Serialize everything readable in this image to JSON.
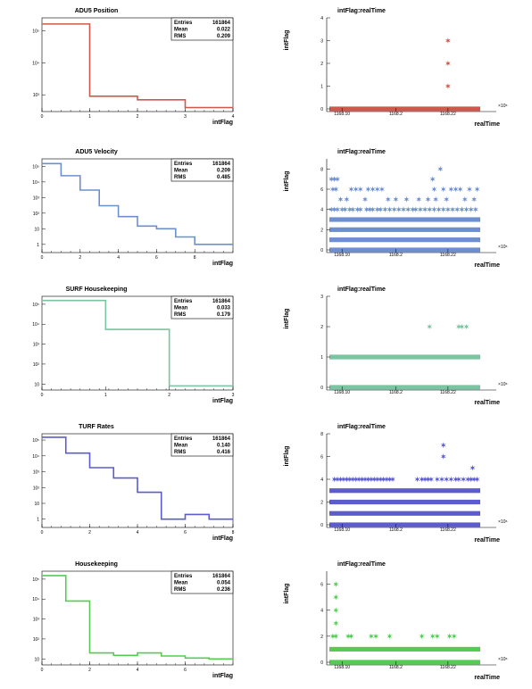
{
  "colors": {
    "frame": "#000000",
    "grey_bin": "#bcbcbc"
  },
  "chart_data": [
    {
      "type": "histogram",
      "title": "ADU5 Position",
      "xlabel": "intFlag",
      "ylabel": "",
      "xlim": [
        0,
        4
      ],
      "ylog": true,
      "yticks": [
        {
          "v": 100000,
          "label": "10⁵"
        },
        {
          "v": 10000,
          "label": "10⁴"
        },
        {
          "v": 1000,
          "label": "10³"
        }
      ],
      "ylim": [
        300,
        250000
      ],
      "xticks": [
        "0",
        "1",
        "2",
        "3",
        "4"
      ],
      "bin_edges": [
        0,
        1,
        2,
        3,
        4
      ],
      "values": [
        161000,
        900,
        700,
        400
      ],
      "color": "#d0574b",
      "stats": {
        "Entries": "161864",
        "Mean": "0.022",
        "RMS": "0.209"
      }
    },
    {
      "type": "scatter",
      "title": "intFlag:realTime",
      "xlabel": "realTime",
      "ylabel": "intFlag",
      "xlim": [
        0,
        100
      ],
      "ylim": [
        0,
        4
      ],
      "yticks": [
        0,
        1,
        2,
        3,
        4
      ],
      "xticks": [
        {
          "v": 10,
          "label": "1168.10"
        },
        {
          "v": 45,
          "label": "1168.2"
        },
        {
          "v": 79,
          "label": "1168.22"
        }
      ],
      "xexp": "×10⁶",
      "color": "#d0574b",
      "bands": [
        0
      ],
      "points": [
        [
          79,
          1
        ],
        [
          79,
          2
        ],
        [
          79,
          3
        ]
      ]
    },
    {
      "type": "histogram",
      "title": "ADU5 Velocity",
      "xlabel": "intFlag",
      "ylabel": "",
      "xlim": [
        0,
        10
      ],
      "ylog": true,
      "yticks": [
        {
          "v": 100000,
          "label": "10⁵"
        },
        {
          "v": 10000,
          "label": "10⁴"
        },
        {
          "v": 1000,
          "label": "10³"
        },
        {
          "v": 100,
          "label": "10²"
        },
        {
          "v": 10,
          "label": "10"
        },
        {
          "v": 1,
          "label": "1"
        }
      ],
      "ylim": [
        0.3,
        300000
      ],
      "xticks": [
        "0",
        "2",
        "4",
        "6",
        "8"
      ],
      "bin_edges": [
        0,
        1,
        2,
        3,
        4,
        5,
        6,
        7,
        8,
        9,
        10
      ],
      "values": [
        150000,
        25000,
        3000,
        300,
        60,
        15,
        10,
        3,
        1,
        1
      ],
      "color": "#6d8fd1",
      "stats": {
        "Entries": "161864",
        "Mean": "0.209",
        "RMS": "0.485"
      }
    },
    {
      "type": "scatter",
      "title": "intFlag:realTime",
      "xlabel": "realTime",
      "ylabel": "intFlag",
      "xlim": [
        0,
        100
      ],
      "ylim": [
        0,
        9
      ],
      "yticks": [
        0,
        2,
        4,
        6,
        8
      ],
      "xticks": [
        {
          "v": 10,
          "label": "1168.10"
        },
        {
          "v": 45,
          "label": "1168.2"
        },
        {
          "v": 79,
          "label": "1168.22"
        }
      ],
      "xexp": "×10⁶",
      "color": "#6d8fd1",
      "bands": [
        0,
        1,
        2,
        3
      ],
      "points": [
        [
          3,
          7
        ],
        [
          5,
          7
        ],
        [
          7,
          7
        ],
        [
          4,
          6
        ],
        [
          6,
          6
        ],
        [
          9,
          5
        ],
        [
          13,
          5
        ],
        [
          16,
          6
        ],
        [
          19,
          6
        ],
        [
          22,
          6
        ],
        [
          25,
          5
        ],
        [
          27,
          6
        ],
        [
          30,
          6
        ],
        [
          33,
          6
        ],
        [
          36,
          6
        ],
        [
          40,
          5
        ],
        [
          45,
          5
        ],
        [
          52,
          5
        ],
        [
          60,
          5
        ],
        [
          66,
          5
        ],
        [
          69,
          7
        ],
        [
          70,
          6
        ],
        [
          71,
          5
        ],
        [
          74,
          8
        ],
        [
          76,
          6
        ],
        [
          78,
          5
        ],
        [
          81,
          6
        ],
        [
          84,
          6
        ],
        [
          87,
          6
        ],
        [
          90,
          5
        ],
        [
          93,
          6
        ],
        [
          96,
          5
        ],
        [
          98,
          6
        ],
        [
          3,
          4
        ],
        [
          5,
          4
        ],
        [
          7,
          4
        ],
        [
          10,
          4
        ],
        [
          12,
          4
        ],
        [
          15,
          4
        ],
        [
          17,
          4
        ],
        [
          20,
          4
        ],
        [
          22,
          4
        ],
        [
          26,
          4
        ],
        [
          28,
          4
        ],
        [
          30,
          4
        ],
        [
          33,
          4
        ],
        [
          35,
          4
        ],
        [
          38,
          4
        ],
        [
          41,
          4
        ],
        [
          44,
          4
        ],
        [
          47,
          4
        ],
        [
          50,
          4
        ],
        [
          53,
          4
        ],
        [
          56,
          4
        ],
        [
          58,
          4
        ],
        [
          61,
          4
        ],
        [
          64,
          4
        ],
        [
          67,
          4
        ],
        [
          70,
          4
        ],
        [
          73,
          4
        ],
        [
          76,
          4
        ],
        [
          79,
          4
        ],
        [
          82,
          4
        ],
        [
          85,
          4
        ],
        [
          88,
          4
        ],
        [
          91,
          4
        ],
        [
          94,
          4
        ],
        [
          97,
          4
        ]
      ]
    },
    {
      "type": "histogram",
      "title": "SURF Housekeeping",
      "xlabel": "intFlag",
      "ylabel": "",
      "xlim": [
        0,
        3
      ],
      "ylog": true,
      "yticks": [
        {
          "v": 100000,
          "label": "10⁵"
        },
        {
          "v": 10000,
          "label": "10⁴"
        },
        {
          "v": 1000,
          "label": "10³"
        },
        {
          "v": 100,
          "label": "10²"
        },
        {
          "v": 10,
          "label": "10"
        }
      ],
      "ylim": [
        5,
        250000
      ],
      "xticks": [
        "0",
        "1",
        "2",
        "3"
      ],
      "bin_edges": [
        0,
        1,
        2,
        3
      ],
      "values": [
        155000,
        5500,
        8
      ],
      "color": "#7ac4a1",
      "stats": {
        "Entries": "161864",
        "Mean": "0.033",
        "RMS": "0.179"
      }
    },
    {
      "type": "scatter",
      "title": "intFlag:realTime",
      "xlabel": "realTime",
      "ylabel": "intFlag",
      "xlim": [
        0,
        100
      ],
      "ylim": [
        0,
        3
      ],
      "yticks": [
        0,
        1,
        2,
        3
      ],
      "xticks": [
        {
          "v": 10,
          "label": "1168.10"
        },
        {
          "v": 45,
          "label": "1168.2"
        },
        {
          "v": 79,
          "label": "1168.22"
        }
      ],
      "xexp": "×10⁶",
      "color": "#7ac4a1",
      "bands": [
        0,
        1
      ],
      "points": [
        [
          67,
          2
        ],
        [
          86,
          2
        ],
        [
          88,
          2
        ],
        [
          91,
          2
        ]
      ]
    },
    {
      "type": "histogram",
      "title": "TURF Rates",
      "xlabel": "intFlag",
      "ylabel": "",
      "xlim": [
        0,
        8
      ],
      "ylog": true,
      "yticks": [
        {
          "v": 100000,
          "label": "10⁵"
        },
        {
          "v": 10000,
          "label": "10⁴"
        },
        {
          "v": 1000,
          "label": "10³"
        },
        {
          "v": 100,
          "label": "10²"
        },
        {
          "v": 10,
          "label": "10"
        },
        {
          "v": 1,
          "label": "1"
        }
      ],
      "ylim": [
        0.3,
        250000
      ],
      "xticks": [
        "0",
        "2",
        "4",
        "6",
        "8"
      ],
      "bin_edges": [
        0,
        1,
        2,
        3,
        4,
        5,
        6,
        7,
        8
      ],
      "values": [
        150000,
        15000,
        1800,
        400,
        50,
        1,
        2,
        1
      ],
      "color": "#5c5ccf",
      "stats": {
        "Entries": "161864",
        "Mean": "0.140",
        "RMS": "0.416"
      }
    },
    {
      "type": "scatter",
      "title": "intFlag:realTime",
      "xlabel": "realTime",
      "ylabel": "intFlag",
      "xlim": [
        0,
        100
      ],
      "ylim": [
        0,
        8
      ],
      "yticks": [
        0,
        2,
        4,
        6,
        8
      ],
      "xticks": [
        {
          "v": 10,
          "label": "1168.10"
        },
        {
          "v": 45,
          "label": "1168.2"
        },
        {
          "v": 79,
          "label": "1168.22"
        }
      ],
      "xexp": "×10⁶",
      "color": "#5c5ccf",
      "bands": [
        0,
        1,
        2,
        3
      ],
      "points": [
        [
          76,
          7
        ],
        [
          76,
          6
        ],
        [
          95,
          5
        ],
        [
          5,
          4
        ],
        [
          7,
          4
        ],
        [
          9,
          4
        ],
        [
          11,
          4
        ],
        [
          13,
          4
        ],
        [
          15,
          4
        ],
        [
          17,
          4
        ],
        [
          19,
          4
        ],
        [
          21,
          4
        ],
        [
          23,
          4
        ],
        [
          25,
          4
        ],
        [
          27,
          4
        ],
        [
          29,
          4
        ],
        [
          31,
          4
        ],
        [
          33,
          4
        ],
        [
          35,
          4
        ],
        [
          37,
          4
        ],
        [
          39,
          4
        ],
        [
          41,
          4
        ],
        [
          43,
          4
        ],
        [
          59,
          4
        ],
        [
          62,
          4
        ],
        [
          64,
          4
        ],
        [
          66,
          4
        ],
        [
          68,
          4
        ],
        [
          72,
          4
        ],
        [
          75,
          4
        ],
        [
          78,
          4
        ],
        [
          81,
          4
        ],
        [
          84,
          4
        ],
        [
          86,
          4
        ],
        [
          89,
          4
        ],
        [
          92,
          4
        ],
        [
          94,
          4
        ],
        [
          96,
          4
        ],
        [
          98,
          4
        ]
      ]
    },
    {
      "type": "histogram",
      "title": "Housekeeping",
      "xlabel": "intFlag",
      "ylabel": "",
      "xlim": [
        0,
        8
      ],
      "ylog": true,
      "yticks": [
        {
          "v": 100000,
          "label": "10⁵"
        },
        {
          "v": 10000,
          "label": "10⁴"
        },
        {
          "v": 1000,
          "label": "10³"
        },
        {
          "v": 100,
          "label": "10²"
        },
        {
          "v": 10,
          "label": "10"
        }
      ],
      "ylim": [
        5,
        250000
      ],
      "xticks": [
        "0",
        "2",
        "4",
        "6"
      ],
      "bin_edges": [
        0,
        1,
        2,
        3,
        4,
        5,
        6,
        7,
        8
      ],
      "values": [
        150000,
        8000,
        20,
        15,
        20,
        14,
        11,
        10
      ],
      "color": "#54cc54",
      "stats": {
        "Entries": "161864",
        "Mean": "0.054",
        "RMS": "0.236"
      }
    },
    {
      "type": "scatter",
      "title": "intFlag:realTime",
      "xlabel": "realTime",
      "ylabel": "intFlag",
      "xlim": [
        0,
        100
      ],
      "ylim": [
        0,
        7
      ],
      "yticks": [
        0,
        2,
        4,
        6
      ],
      "xticks": [
        {
          "v": 10,
          "label": "1168.10"
        },
        {
          "v": 45,
          "label": "1168.2"
        },
        {
          "v": 79,
          "label": "1168.22"
        }
      ],
      "xexp": "×10⁶",
      "color": "#54cc54",
      "bands": [
        0,
        1
      ],
      "points": [
        [
          6,
          6
        ],
        [
          6,
          5
        ],
        [
          6,
          4
        ],
        [
          6,
          3
        ],
        [
          4,
          2
        ],
        [
          6,
          2
        ],
        [
          14,
          2
        ],
        [
          16,
          2
        ],
        [
          29,
          2
        ],
        [
          32,
          2
        ],
        [
          41,
          2
        ],
        [
          62,
          2
        ],
        [
          69,
          2
        ],
        [
          72,
          2
        ],
        [
          80,
          2
        ],
        [
          83,
          2
        ]
      ]
    }
  ]
}
